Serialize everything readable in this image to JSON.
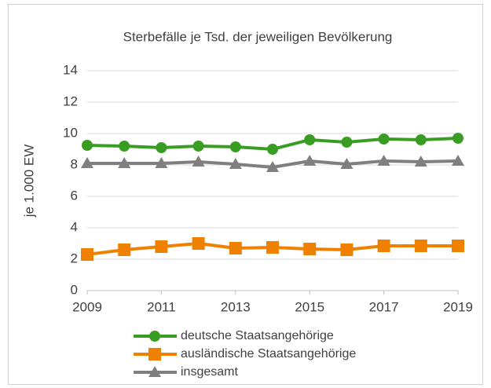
{
  "chart_data": {
    "type": "line",
    "title": "Sterbefälle je Tsd. der jeweiligen Bevölkerung",
    "ylabel": "je 1.000 EW",
    "x": [
      2009,
      2010,
      2011,
      2012,
      2013,
      2014,
      2015,
      2016,
      2017,
      2018,
      2019
    ],
    "xlim": [
      2009,
      2019
    ],
    "xticks": [
      2009,
      2011,
      2013,
      2015,
      2017,
      2019
    ],
    "ylim": [
      0,
      14
    ],
    "yticks": [
      0,
      2,
      4,
      6,
      8,
      10,
      12,
      14
    ],
    "grid": true,
    "legend": "bottom",
    "series": [
      {
        "name": "deutsche Staatsangehörige",
        "color": "#3a9d23",
        "marker": "circle",
        "values": [
          9.25,
          9.2,
          9.1,
          9.2,
          9.15,
          9.0,
          9.6,
          9.45,
          9.65,
          9.6,
          9.7
        ]
      },
      {
        "name": "ausländische Staatsangehörige",
        "color": "#f08000",
        "marker": "square",
        "values": [
          2.3,
          2.6,
          2.8,
          3.0,
          2.7,
          2.75,
          2.65,
          2.6,
          2.85,
          2.85,
          2.85
        ]
      },
      {
        "name": "insgesamt",
        "color": "#7f7f7f",
        "marker": "triangle",
        "values": [
          8.1,
          8.1,
          8.1,
          8.2,
          8.05,
          7.85,
          8.25,
          8.05,
          8.25,
          8.2,
          8.25
        ]
      }
    ]
  }
}
